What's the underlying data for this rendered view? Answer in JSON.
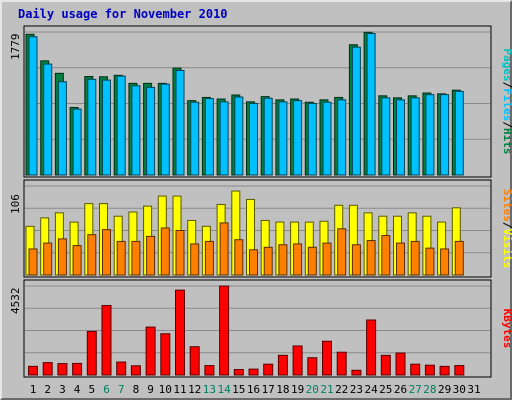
{
  "chart_data": {
    "type": "bar",
    "title": "Daily usage for November 2010",
    "days": [
      "1",
      "2",
      "3",
      "4",
      "5",
      "6",
      "7",
      "8",
      "9",
      "10",
      "11",
      "12",
      "13",
      "14",
      "15",
      "16",
      "17",
      "18",
      "19",
      "20",
      "21",
      "22",
      "23",
      "24",
      "25",
      "26",
      "27",
      "28",
      "29",
      "30",
      "31"
    ],
    "weekend_days": [
      "6",
      "7",
      "13",
      "14",
      "20",
      "21",
      "27",
      "28"
    ],
    "panels": [
      {
        "id": "traffic",
        "max_label": "1779",
        "ylim": [
          0,
          1779
        ],
        "series": [
          {
            "name": "Hits",
            "color": "#008040",
            "values": [
              1750,
              1420,
              1265,
              840,
              1225,
              1222,
              1240,
              1140,
              1140,
              1140,
              1330,
              925,
              965,
              945,
              995,
              910,
              975,
              935,
              945,
              905,
              935,
              965,
              1620,
              1775,
              985,
              960,
              985,
              1020,
              1010,
              1055,
              null
            ]
          },
          {
            "name": "Files",
            "color": "#00c0ff",
            "values": [
              1720,
              1380,
              1160,
              820,
              1190,
              1180,
              1230,
              1110,
              1090,
              1130,
              1300,
              905,
              950,
              910,
              970,
              890,
              955,
              910,
              925,
              890,
              905,
              935,
              1590,
              1760,
              960,
              935,
              960,
              1000,
              1000,
              1040,
              null
            ]
          },
          {
            "name": "Pages",
            "color": "#00c0c0",
            "values": []
          }
        ],
        "legend": [
          "Pages",
          "Files",
          "Hits"
        ]
      },
      {
        "id": "visits",
        "max_label": "106",
        "ylim": [
          0,
          106
        ],
        "series": [
          {
            "name": "Visits",
            "color": "#ffff00",
            "values": [
              58,
              68,
              74,
              63,
              85,
              85,
              70,
              75,
              82,
              94,
              94,
              65,
              58,
              84,
              100,
              90,
              65,
              63,
              63,
              63,
              64,
              83,
              83,
              74,
              70,
              70,
              74,
              70,
              63,
              80,
              null
            ]
          },
          {
            "name": "Sites",
            "color": "#ff8000",
            "values": [
              31,
              38,
              43,
              35,
              48,
              54,
              40,
              40,
              46,
              56,
              53,
              37,
              40,
              62,
              42,
              30,
              33,
              36,
              37,
              33,
              38,
              55,
              36,
              41,
              47,
              38,
              40,
              32,
              31,
              40,
              null
            ]
          }
        ],
        "legend": [
          "Sites",
          "Visits"
        ]
      },
      {
        "id": "kbytes",
        "max_label": "4532",
        "ylim": [
          0,
          4532
        ],
        "series": [
          {
            "name": "KBytes",
            "color": "#ff0000",
            "values": [
              440,
              630,
              580,
              590,
              2220,
              3540,
              660,
              470,
              2440,
              2100,
              4320,
              1440,
              480,
              4530,
              280,
              300,
              550,
              1000,
              1480,
              880,
              1720,
              1160,
              240,
              2800,
              1000,
              1120,
              550,
              500,
              440,
              480,
              null
            ]
          }
        ],
        "legend": [
          "KBytes"
        ]
      }
    ]
  }
}
